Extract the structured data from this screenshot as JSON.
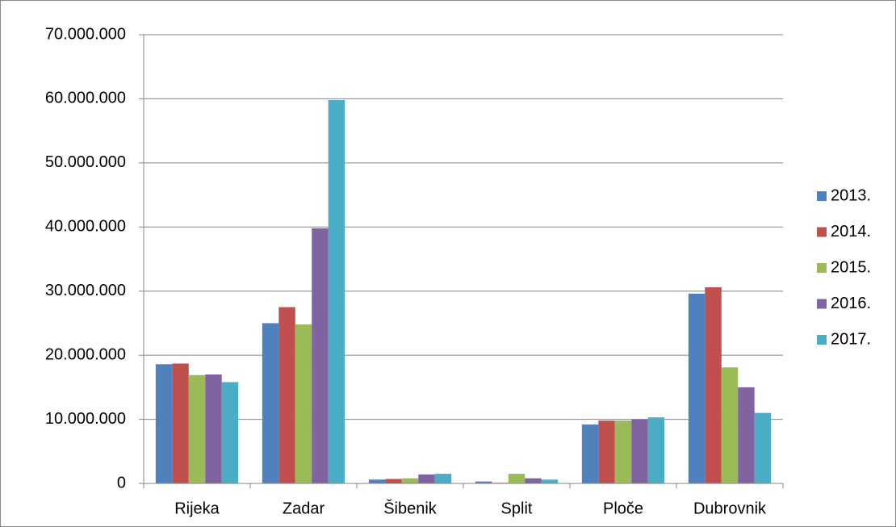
{
  "chart_data": {
    "type": "bar",
    "categories": [
      "Rijeka",
      "Zadar",
      "Šibenik",
      "Split",
      "Ploče",
      "Dubrovnik"
    ],
    "series": [
      {
        "name": "2013.",
        "color": "#4f81bd",
        "values": [
          18600000,
          25000000,
          600000,
          300000,
          9200000,
          29600000
        ]
      },
      {
        "name": "2014.",
        "color": "#c0504d",
        "values": [
          18700000,
          27500000,
          700000,
          100000,
          9800000,
          30600000
        ]
      },
      {
        "name": "2015.",
        "color": "#9bbb59",
        "values": [
          16900000,
          24800000,
          800000,
          1500000,
          9800000,
          18100000
        ]
      },
      {
        "name": "2016.",
        "color": "#8064a2",
        "values": [
          17000000,
          39800000,
          1400000,
          800000,
          10000000,
          15000000
        ]
      },
      {
        "name": "2017.",
        "color": "#4bacc6",
        "values": [
          15800000,
          59800000,
          1500000,
          600000,
          10300000,
          11000000
        ]
      }
    ],
    "ylim": [
      0,
      70000000
    ],
    "yticks": [
      0,
      {
        "value": 10000000,
        "label": "10.000.000"
      },
      {
        "value": 20000000,
        "label": "20.000.000"
      },
      {
        "value": 30000000,
        "label": "30.000.000"
      },
      {
        "value": 40000000,
        "label": "40.000.000"
      },
      {
        "value": 50000000,
        "label": "50.000.000"
      },
      {
        "value": 60000000,
        "label": "60.000.000"
      },
      {
        "value": 70000000,
        "label": "70.000.000"
      }
    ],
    "grid": true,
    "legend": "right"
  }
}
